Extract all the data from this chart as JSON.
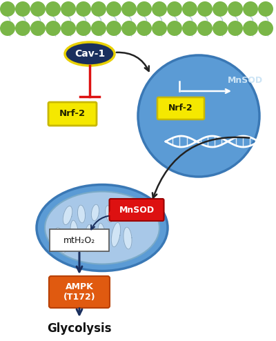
{
  "bg_color": "#ffffff",
  "membrane_color": "#7ab648",
  "cav1_ellipse_color": "#1a2f5e",
  "cav1_border_color": "#e8d000",
  "cav1_text": "Cav-1",
  "cav1_text_color": "#ffffff",
  "nrf2_box_color": "#f5e800",
  "nrf2_border_color": "#c8b800",
  "nrf2_text": "Nrf-2",
  "inhibit_color": "#dd1111",
  "nucleus_color": "#5b9bd5",
  "nucleus_border": "#3a78b5",
  "nrf2_right_text": "Nrf-2",
  "mnSOD_label_color": "#cce4f5",
  "mito_outer_color": "#5b9bd5",
  "mito_outer_border": "#3a78b5",
  "mito_inner_color": "#a8c8e8",
  "mito_inner_border": "#7aaac8",
  "mito_cristae_fill": "#d0e4f5",
  "mito_cristae_border": "#8aaac8",
  "mnSOD_box_color": "#dd1111",
  "mnSOD_box_text": "MnSOD",
  "mnSOD_text_color": "#ffffff",
  "red_up_arrow": "#dd1111",
  "mtH2O2_box_color": "#ffffff",
  "mtH2O2_box_border": "#555555",
  "mtH2O2_text": "mtH₂O₂",
  "ampk_box_color": "#e05a10",
  "ampk_box_border": "#b84000",
  "ampk_text": "AMPK\n(T172)",
  "ampk_text_color": "#ffffff",
  "glycolysis_text": "Glycolysis",
  "dark_arrow_color": "#1a2f5e",
  "black_arrow_color": "#222222"
}
